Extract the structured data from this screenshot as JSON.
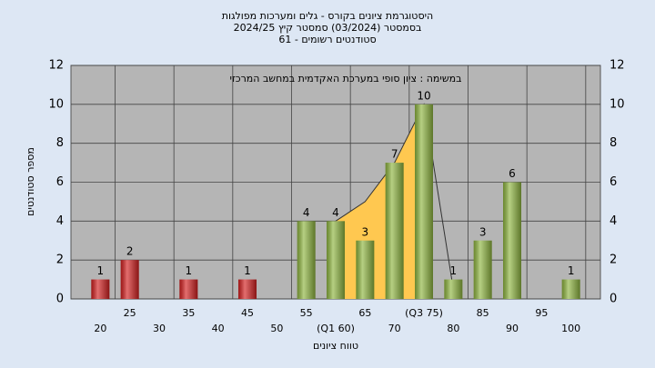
{
  "chart_data": {
    "type": "bar",
    "title": "היסטוגרמת ציונים בקורס - גלים ומערכות מפולגות",
    "subtitle": "בסמסטר (03/2024) סמסטר קיץ 2024/25",
    "subtitle2": "סטודנטים רשומים - 61",
    "annotation": "במשימה : ציון סופי במערכת האקדמית במחשב המרכזי",
    "x_label": "טווח ציונים",
    "y_label": "מספר סטודנטים",
    "categories": [
      "20",
      "25",
      "30",
      "35",
      "40",
      "45",
      "50",
      "55",
      "(Q1 60)",
      "65",
      "70",
      "(Q3 75)",
      "80",
      "85",
      "90",
      "95",
      "100"
    ],
    "values": [
      1,
      2,
      0,
      1,
      0,
      1,
      0,
      4,
      4,
      3,
      7,
      10,
      1,
      3,
      6,
      0,
      1
    ],
    "bar_colors": [
      "#d42020",
      "#d42020",
      "#d42020",
      "#d42020",
      "#d42020",
      "#d42020",
      "#d42020",
      "#8fb640",
      "#8fb640",
      "#8fb640",
      "#8fb640",
      "#8fb640",
      "#8fb640",
      "#8fb640",
      "#8fb640",
      "#8fb640",
      "#8fb640"
    ],
    "area_values": [
      null,
      null,
      null,
      null,
      null,
      null,
      null,
      null,
      4,
      5,
      7,
      10,
      0.5,
      null,
      null,
      null,
      null
    ],
    "area_color": "#ffc850",
    "ylim": [
      0,
      12
    ],
    "yticks": [
      0,
      2,
      4,
      6,
      8,
      10,
      12
    ],
    "grid": true
  }
}
